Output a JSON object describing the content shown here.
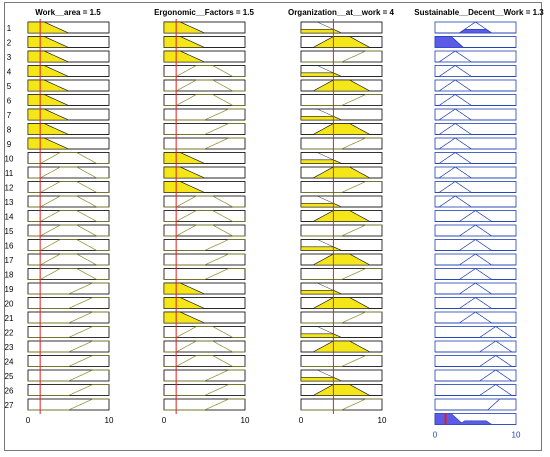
{
  "rule_viewer": {
    "columns": [
      {
        "id": "work_area",
        "kind": "input",
        "label": "Work__area = 1.5",
        "value": 1.5,
        "range": [
          0,
          10
        ],
        "tick_labels": [
          "0",
          "10"
        ]
      },
      {
        "id": "ergonomic_factors",
        "kind": "input",
        "label": "Ergonomic__Factors = 1.5",
        "value": 1.5,
        "range": [
          0,
          10
        ],
        "tick_labels": [
          "0",
          "10"
        ]
      },
      {
        "id": "organization_at_work",
        "kind": "input",
        "label": "Organization__at__work = 4",
        "value": 4,
        "range": [
          0,
          10
        ],
        "tick_labels": [
          "0",
          "10"
        ]
      },
      {
        "id": "sustainable_decent_work",
        "kind": "output",
        "label": "Sustainable__Decent__Work = 1.3",
        "value": 1.3,
        "range": [
          0,
          10
        ],
        "tick_labels": [
          "0",
          "10"
        ]
      }
    ],
    "rule_numbers": [
      "1",
      "2",
      "3",
      "4",
      "5",
      "6",
      "7",
      "8",
      "9",
      "10",
      "11",
      "12",
      "13",
      "14",
      "15",
      "16",
      "17",
      "18",
      "19",
      "20",
      "21",
      "22",
      "23",
      "24",
      "25",
      "26",
      "27"
    ],
    "membership_functions": {
      "input": {
        "L": [
          -4,
          0,
          2,
          5
        ],
        "M": [
          1.5,
          4,
          6,
          8.5
        ],
        "H": [
          5,
          8,
          10,
          14
        ]
      },
      "output": {
        "L": [
          -4,
          0,
          2,
          3.5
        ],
        "LM": [
          0.5,
          2.5,
          4.5
        ],
        "M": [
          3,
          5,
          7
        ],
        "HM": [
          5.5,
          7.5,
          9.5
        ],
        "H": [
          6.5,
          8,
          10,
          14
        ]
      }
    },
    "rules": [
      {
        "in": [
          "L",
          "L",
          "L"
        ],
        "out": "M"
      },
      {
        "in": [
          "L",
          "L",
          "M"
        ],
        "out": "L"
      },
      {
        "in": [
          "L",
          "L",
          "H"
        ],
        "out": "LM"
      },
      {
        "in": [
          "L",
          "M",
          "L"
        ],
        "out": "LM"
      },
      {
        "in": [
          "L",
          "M",
          "M"
        ],
        "out": "LM"
      },
      {
        "in": [
          "L",
          "M",
          "H"
        ],
        "out": "LM"
      },
      {
        "in": [
          "L",
          "H",
          "L"
        ],
        "out": "LM"
      },
      {
        "in": [
          "L",
          "H",
          "M"
        ],
        "out": "LM"
      },
      {
        "in": [
          "L",
          "H",
          "H"
        ],
        "out": "LM"
      },
      {
        "in": [
          "M",
          "L",
          "L"
        ],
        "out": "LM"
      },
      {
        "in": [
          "M",
          "L",
          "M"
        ],
        "out": "LM"
      },
      {
        "in": [
          "M",
          "L",
          "H"
        ],
        "out": "LM"
      },
      {
        "in": [
          "M",
          "M",
          "L"
        ],
        "out": "LM"
      },
      {
        "in": [
          "M",
          "M",
          "M"
        ],
        "out": "M"
      },
      {
        "in": [
          "M",
          "M",
          "H"
        ],
        "out": "M"
      },
      {
        "in": [
          "M",
          "H",
          "L"
        ],
        "out": "M"
      },
      {
        "in": [
          "M",
          "H",
          "M"
        ],
        "out": "M"
      },
      {
        "in": [
          "M",
          "H",
          "H"
        ],
        "out": "M"
      },
      {
        "in": [
          "H",
          "L",
          "L"
        ],
        "out": "M"
      },
      {
        "in": [
          "H",
          "L",
          "M"
        ],
        "out": "M"
      },
      {
        "in": [
          "H",
          "L",
          "H"
        ],
        "out": "M"
      },
      {
        "in": [
          "H",
          "M",
          "L"
        ],
        "out": "HM"
      },
      {
        "in": [
          "H",
          "M",
          "M"
        ],
        "out": "HM"
      },
      {
        "in": [
          "H",
          "M",
          "H"
        ],
        "out": "HM"
      },
      {
        "in": [
          "H",
          "H",
          "L"
        ],
        "out": "HM"
      },
      {
        "in": [
          "H",
          "H",
          "M"
        ],
        "out": "HM"
      },
      {
        "in": [
          "H",
          "H",
          "H"
        ],
        "out": "H"
      }
    ],
    "colors": {
      "active_input_fill": "#f5e61a",
      "active_output_fill": "#5b5be8",
      "inactive_input_line": "#8a8a2a",
      "output_line": "#1f3fb5",
      "cursor_line": "#e02020"
    }
  }
}
